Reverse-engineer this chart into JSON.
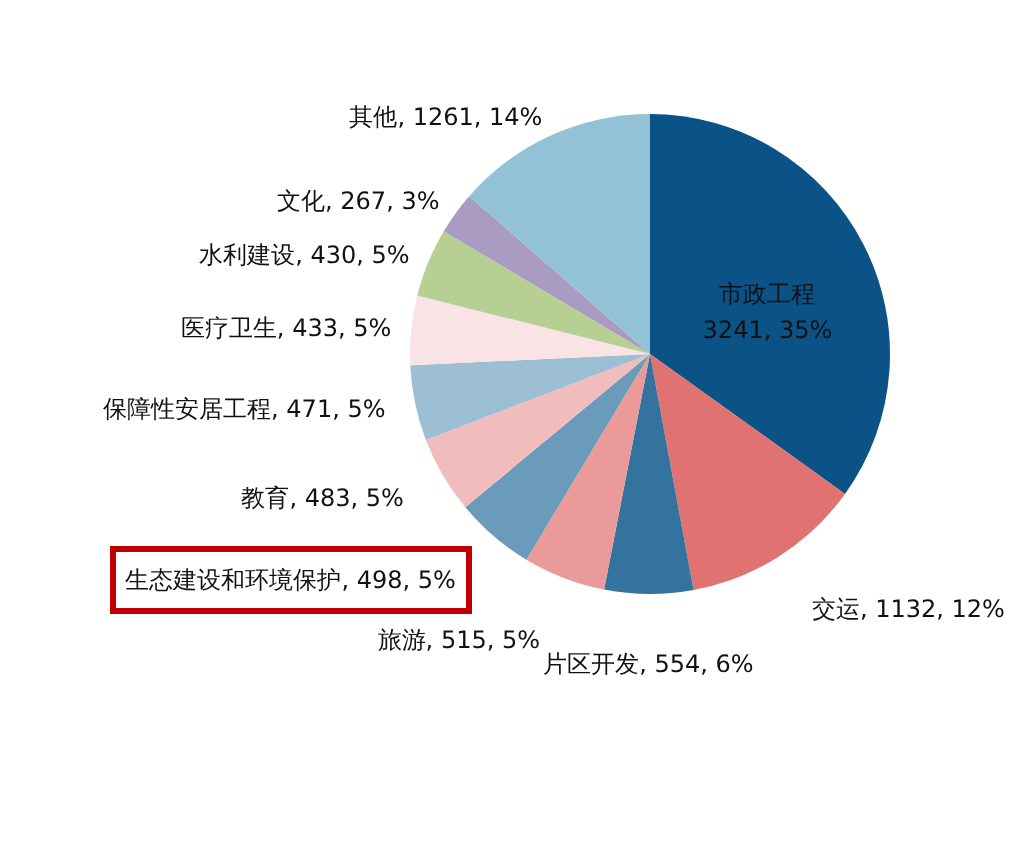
{
  "chart_data": {
    "type": "pie",
    "categories": [
      "市政工程",
      "交运",
      "片区开发",
      "旅游",
      "生态建设和环境保护",
      "教育",
      "保障性安居工程",
      "医疗卫生",
      "水利建设",
      "文化",
      "其他"
    ],
    "values": [
      3241,
      1132,
      554,
      515,
      498,
      483,
      471,
      433,
      430,
      267,
      1261
    ],
    "value_labels": [
      "3241, 35%",
      "1132, 12%",
      "554, 6%",
      "515, 5%",
      "498, 5%",
      "483, 5%",
      "471, 5%",
      "433, 5%",
      "430, 5%",
      "267, 3%",
      "1261, 14%"
    ],
    "colors": [
      "#0b5387",
      "#e07272",
      "#33739e",
      "#eb9a9a",
      "#6a9bbb",
      "#f1bcbc",
      "#9dbfd4",
      "#f9e3e4",
      "#b8cf94",
      "#a99bc2",
      "#93c1d5"
    ]
  }
}
